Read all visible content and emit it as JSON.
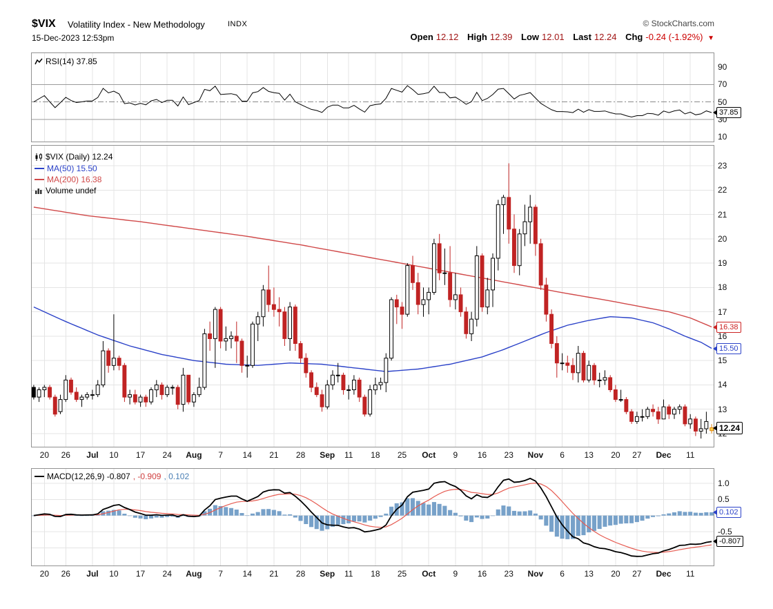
{
  "header": {
    "symbol": "$VIX",
    "name": "Volatility Index - New Methodology",
    "exchange": "INDX",
    "credit": "© StockCharts.com",
    "datetime": "15-Dec-2023 12:53pm",
    "quote": {
      "open_label": "Open",
      "open": "12.12",
      "high_label": "High",
      "high": "12.39",
      "low_label": "Low",
      "low": "12.01",
      "last_label": "Last",
      "last": "12.24",
      "chg_label": "Chg",
      "chg": "-0.24 (-1.92%)",
      "down_arrow": "▼"
    }
  },
  "rsi_panel": {
    "legend": "RSI(14) 37.85",
    "last_label": "37.85"
  },
  "main_panel": {
    "legend_symbol": "$VIX (Daily) 12.24",
    "legend_ma50": "MA(50) 15.50",
    "legend_ma200": "MA(200) 16.38",
    "legend_volume": "Volume undef",
    "ma200_label": "16.38",
    "ma50_label": "15.50",
    "last_label": "12.24"
  },
  "macd_panel": {
    "legend_black": "MACD(12,26,9) -0.807",
    "legend_red": ", -0.909",
    "legend_blue": ", 0.102",
    "hist_label": "0.102",
    "macd_label": "-0.807"
  },
  "colors": {
    "candle_up": "#000000",
    "candle_down": "#c02323",
    "last_candle_stroke": "#e0860a",
    "last_candle_fill": "#ffd24d",
    "ma50": "#2a41c8",
    "ma200": "#d04848",
    "rsi_line": "#000000",
    "macd_line": "#000000",
    "macd_signal": "#e65a50",
    "macd_hist": "#77a1c9",
    "grid": "#e4e4e4",
    "band_line": "#9a9a9a",
    "midline": "#888888",
    "panel_border": "#919191",
    "quote_value": "#a11414",
    "chg_red": "#cc0000"
  },
  "chart_data": {
    "type": "candlestick",
    "title": "$VIX Volatility Index - New Methodology (Daily) with RSI(14) and MACD(12,26,9)",
    "legend_position": "top-left",
    "grid": true,
    "panels": {
      "x_ticks": [
        [
          2,
          "20"
        ],
        [
          6,
          "26"
        ],
        [
          11,
          "Jul"
        ],
        [
          15,
          "10"
        ],
        [
          20,
          "17"
        ],
        [
          25,
          "24"
        ],
        [
          30,
          "Aug"
        ],
        [
          35,
          "7"
        ],
        [
          40,
          "14"
        ],
        [
          45,
          "21"
        ],
        [
          50,
          "28"
        ],
        [
          55,
          "Sep"
        ],
        [
          59,
          "11"
        ],
        [
          64,
          "18"
        ],
        [
          69,
          "25"
        ],
        [
          74,
          "Oct"
        ],
        [
          79,
          "9"
        ],
        [
          84,
          "16"
        ],
        [
          89,
          "23"
        ],
        [
          94,
          "Nov"
        ],
        [
          99,
          "6"
        ],
        [
          104,
          "13"
        ],
        [
          109,
          "20"
        ],
        [
          113,
          "27"
        ],
        [
          118,
          "Dec"
        ],
        [
          123,
          "11"
        ]
      ],
      "rsi": {
        "period": 14,
        "last": 37.85,
        "ylim": [
          0,
          100
        ],
        "y_ticks": [
          90,
          70,
          50,
          30,
          10
        ],
        "overbought": 70,
        "midline": 50,
        "oversold": 30
      },
      "price": {
        "ylim": [
          11.4,
          23.8
        ],
        "y_ticks": [
          23,
          22,
          21,
          20,
          19,
          18,
          17,
          16,
          15,
          14,
          13,
          12
        ],
        "last": 12.24,
        "ma50": {
          "name": "MA(50)",
          "last": 15.5,
          "anchors": [
            [
              0,
              17.2
            ],
            [
              6,
              16.6
            ],
            [
              12,
              16.05
            ],
            [
              18,
              15.6
            ],
            [
              24,
              15.25
            ],
            [
              30,
              15.0
            ],
            [
              36,
              14.85
            ],
            [
              42,
              14.8
            ],
            [
              48,
              14.9
            ],
            [
              54,
              14.85
            ],
            [
              60,
              14.7
            ],
            [
              66,
              14.55
            ],
            [
              72,
              14.65
            ],
            [
              78,
              14.85
            ],
            [
              84,
              15.15
            ],
            [
              88,
              15.45
            ],
            [
              92,
              15.8
            ],
            [
              96,
              16.15
            ],
            [
              100,
              16.45
            ],
            [
              104,
              16.65
            ],
            [
              108,
              16.8
            ],
            [
              112,
              16.75
            ],
            [
              116,
              16.55
            ],
            [
              119,
              16.3
            ],
            [
              122,
              16.0
            ],
            [
              125,
              15.75
            ],
            [
              127,
              15.5
            ]
          ]
        },
        "ma200": {
          "name": "MA(200)",
          "last": 16.38,
          "anchors": [
            [
              0,
              21.3
            ],
            [
              10,
              20.95
            ],
            [
              20,
              20.7
            ],
            [
              30,
              20.4
            ],
            [
              40,
              20.1
            ],
            [
              50,
              19.75
            ],
            [
              60,
              19.35
            ],
            [
              70,
              18.95
            ],
            [
              80,
              18.55
            ],
            [
              90,
              18.15
            ],
            [
              100,
              17.75
            ],
            [
              108,
              17.45
            ],
            [
              114,
              17.2
            ],
            [
              119,
              17.0
            ],
            [
              123,
              16.75
            ],
            [
              127,
              16.38
            ]
          ]
        },
        "ohlc": [
          [
            13.9,
            14.0,
            13.4,
            13.5
          ],
          [
            13.5,
            13.9,
            13.3,
            13.8
          ],
          [
            13.8,
            14.0,
            13.5,
            13.9
          ],
          [
            13.9,
            14.0,
            13.4,
            13.5
          ],
          [
            13.5,
            13.6,
            12.7,
            12.8
          ],
          [
            12.9,
            13.6,
            12.8,
            13.4
          ],
          [
            13.4,
            14.4,
            13.3,
            14.2
          ],
          [
            14.2,
            14.3,
            13.6,
            13.7
          ],
          [
            13.7,
            13.9,
            13.3,
            13.4
          ],
          [
            13.4,
            13.6,
            13.1,
            13.5
          ],
          [
            13.5,
            13.7,
            13.4,
            13.6
          ],
          [
            13.6,
            13.8,
            13.4,
            13.6
          ],
          [
            13.6,
            14.2,
            13.5,
            14.0
          ],
          [
            14.0,
            15.8,
            13.9,
            15.4
          ],
          [
            15.4,
            15.5,
            14.5,
            14.8
          ],
          [
            14.8,
            16.9,
            14.6,
            15.1
          ],
          [
            15.1,
            15.2,
            14.6,
            14.8
          ],
          [
            14.8,
            14.9,
            13.3,
            13.5
          ],
          [
            13.5,
            13.8,
            13.2,
            13.6
          ],
          [
            13.6,
            13.8,
            13.2,
            13.3
          ],
          [
            13.3,
            13.6,
            13.1,
            13.5
          ],
          [
            13.5,
            13.6,
            13.1,
            13.3
          ],
          [
            13.3,
            13.9,
            13.2,
            13.8
          ],
          [
            13.8,
            14.2,
            13.5,
            14.0
          ],
          [
            14.0,
            14.1,
            13.4,
            13.6
          ],
          [
            13.6,
            14.0,
            13.5,
            13.9
          ],
          [
            13.9,
            14.0,
            13.6,
            13.9
          ],
          [
            13.9,
            14.0,
            13.0,
            13.2
          ],
          [
            13.2,
            14.7,
            12.9,
            14.4
          ],
          [
            14.4,
            14.4,
            13.2,
            13.3
          ],
          [
            13.3,
            13.7,
            13.1,
            13.6
          ],
          [
            13.6,
            14.3,
            13.5,
            13.9
          ],
          [
            13.9,
            16.3,
            13.8,
            16.1
          ],
          [
            16.1,
            16.6,
            15.4,
            15.9
          ],
          [
            15.9,
            17.2,
            14.7,
            17.1
          ],
          [
            17.1,
            17.2,
            15.5,
            15.8
          ],
          [
            15.8,
            16.4,
            15.4,
            15.9
          ],
          [
            15.9,
            16.2,
            15.5,
            16.0
          ],
          [
            16.0,
            16.6,
            14.9,
            15.8
          ],
          [
            15.8,
            15.9,
            14.5,
            14.8
          ],
          [
            14.8,
            15.2,
            14.3,
            14.8
          ],
          [
            14.8,
            16.6,
            14.7,
            16.5
          ],
          [
            16.5,
            17.0,
            15.8,
            16.8
          ],
          [
            16.8,
            18.1,
            16.4,
            17.9
          ],
          [
            17.9,
            18.9,
            17.0,
            17.3
          ],
          [
            17.3,
            18.0,
            16.8,
            17.1
          ],
          [
            17.1,
            17.6,
            16.4,
            17.0
          ],
          [
            17.0,
            17.2,
            15.6,
            15.9
          ],
          [
            15.9,
            17.4,
            15.4,
            17.2
          ],
          [
            17.2,
            17.3,
            15.4,
            15.7
          ],
          [
            15.7,
            15.8,
            14.9,
            15.1
          ],
          [
            15.1,
            15.3,
            14.3,
            14.5
          ],
          [
            14.5,
            14.6,
            13.7,
            13.9
          ],
          [
            13.9,
            14.1,
            13.5,
            13.6
          ],
          [
            13.6,
            13.8,
            12.9,
            13.1
          ],
          [
            13.1,
            14.2,
            13.0,
            14.0
          ],
          [
            14.0,
            14.6,
            13.8,
            14.4
          ],
          [
            14.4,
            14.9,
            14.1,
            14.4
          ],
          [
            14.4,
            14.5,
            13.6,
            13.8
          ],
          [
            13.8,
            14.0,
            13.4,
            13.8
          ],
          [
            13.8,
            14.4,
            13.6,
            14.2
          ],
          [
            14.2,
            14.3,
            13.3,
            13.5
          ],
          [
            13.5,
            13.6,
            12.7,
            12.8
          ],
          [
            12.8,
            14.0,
            12.7,
            13.8
          ],
          [
            13.8,
            14.3,
            13.6,
            14.0
          ],
          [
            14.0,
            14.3,
            13.8,
            14.1
          ],
          [
            14.1,
            15.3,
            13.7,
            15.1
          ],
          [
            15.1,
            17.6,
            15.0,
            17.5
          ],
          [
            17.5,
            17.7,
            16.5,
            17.2
          ],
          [
            17.2,
            17.4,
            16.3,
            16.9
          ],
          [
            16.9,
            19.0,
            16.8,
            18.9
          ],
          [
            18.9,
            19.3,
            17.9,
            18.2
          ],
          [
            18.2,
            18.6,
            16.9,
            17.3
          ],
          [
            17.3,
            18.0,
            16.8,
            17.5
          ],
          [
            17.5,
            18.0,
            16.9,
            17.8
          ],
          [
            17.8,
            20.0,
            17.7,
            19.8
          ],
          [
            19.8,
            20.2,
            18.3,
            18.6
          ],
          [
            18.6,
            19.6,
            18.1,
            18.6
          ],
          [
            18.6,
            19.7,
            17.2,
            17.5
          ],
          [
            17.5,
            18.6,
            17.1,
            17.7
          ],
          [
            17.7,
            18.0,
            16.8,
            17.0
          ],
          [
            17.0,
            17.2,
            15.9,
            16.1
          ],
          [
            16.1,
            17.0,
            15.8,
            16.7
          ],
          [
            16.7,
            19.7,
            16.4,
            19.3
          ],
          [
            19.3,
            19.4,
            17.0,
            17.2
          ],
          [
            17.2,
            18.4,
            16.9,
            17.9
          ],
          [
            17.9,
            19.4,
            17.2,
            19.2
          ],
          [
            19.2,
            21.6,
            18.7,
            21.4
          ],
          [
            21.4,
            21.8,
            20.2,
            21.7
          ],
          [
            21.7,
            23.1,
            19.8,
            20.4
          ],
          [
            20.4,
            21.0,
            18.6,
            18.9
          ],
          [
            18.9,
            20.4,
            18.5,
            20.2
          ],
          [
            20.2,
            21.4,
            19.7,
            20.7
          ],
          [
            20.7,
            21.8,
            19.8,
            21.3
          ],
          [
            21.3,
            21.4,
            19.3,
            19.8
          ],
          [
            19.8,
            20.0,
            17.9,
            18.1
          ],
          [
            18.1,
            18.4,
            16.6,
            16.9
          ],
          [
            16.9,
            17.1,
            15.5,
            15.7
          ],
          [
            15.7,
            16.0,
            14.3,
            14.9
          ],
          [
            14.9,
            15.3,
            14.6,
            14.9
          ],
          [
            14.9,
            15.2,
            14.5,
            14.8
          ],
          [
            14.8,
            15.1,
            14.2,
            14.5
          ],
          [
            14.5,
            15.6,
            14.1,
            15.3
          ],
          [
            15.3,
            15.4,
            14.1,
            14.2
          ],
          [
            14.2,
            15.0,
            14.1,
            14.8
          ],
          [
            14.8,
            14.9,
            14.0,
            14.2
          ],
          [
            14.2,
            14.5,
            13.9,
            14.2
          ],
          [
            14.2,
            14.6,
            14.0,
            14.3
          ],
          [
            14.3,
            14.4,
            13.7,
            13.8
          ],
          [
            13.8,
            14.0,
            13.3,
            13.4
          ],
          [
            13.4,
            13.8,
            13.3,
            13.4
          ],
          [
            13.4,
            13.5,
            12.8,
            12.9
          ],
          [
            12.9,
            13.0,
            12.4,
            12.5
          ],
          [
            12.5,
            12.9,
            12.4,
            12.7
          ],
          [
            12.7,
            13.0,
            12.5,
            12.7
          ],
          [
            12.7,
            13.1,
            12.6,
            13.0
          ],
          [
            13.0,
            13.2,
            12.7,
            12.9
          ],
          [
            12.9,
            13.1,
            12.4,
            12.6
          ],
          [
            12.6,
            13.4,
            12.6,
            13.1
          ],
          [
            13.1,
            13.2,
            12.6,
            12.8
          ],
          [
            12.8,
            13.1,
            12.6,
            13.0
          ],
          [
            13.0,
            13.2,
            12.8,
            13.1
          ],
          [
            13.1,
            13.2,
            12.3,
            12.4
          ],
          [
            12.4,
            12.8,
            12.2,
            12.6
          ],
          [
            12.6,
            12.7,
            11.9,
            12.1
          ],
          [
            12.1,
            12.6,
            11.8,
            12.2
          ],
          [
            12.2,
            12.9,
            12.0,
            12.5
          ],
          [
            12.12,
            12.39,
            12.01,
            12.24
          ]
        ]
      },
      "macd": {
        "params": [
          12,
          26,
          9
        ],
        "macd": -0.807,
        "signal": -0.909,
        "hist": 0.102,
        "ylim": [
          -1.57,
          1.47
        ],
        "y_ticks": [
          "1.0",
          "0.5",
          "-0.5"
        ]
      }
    }
  }
}
